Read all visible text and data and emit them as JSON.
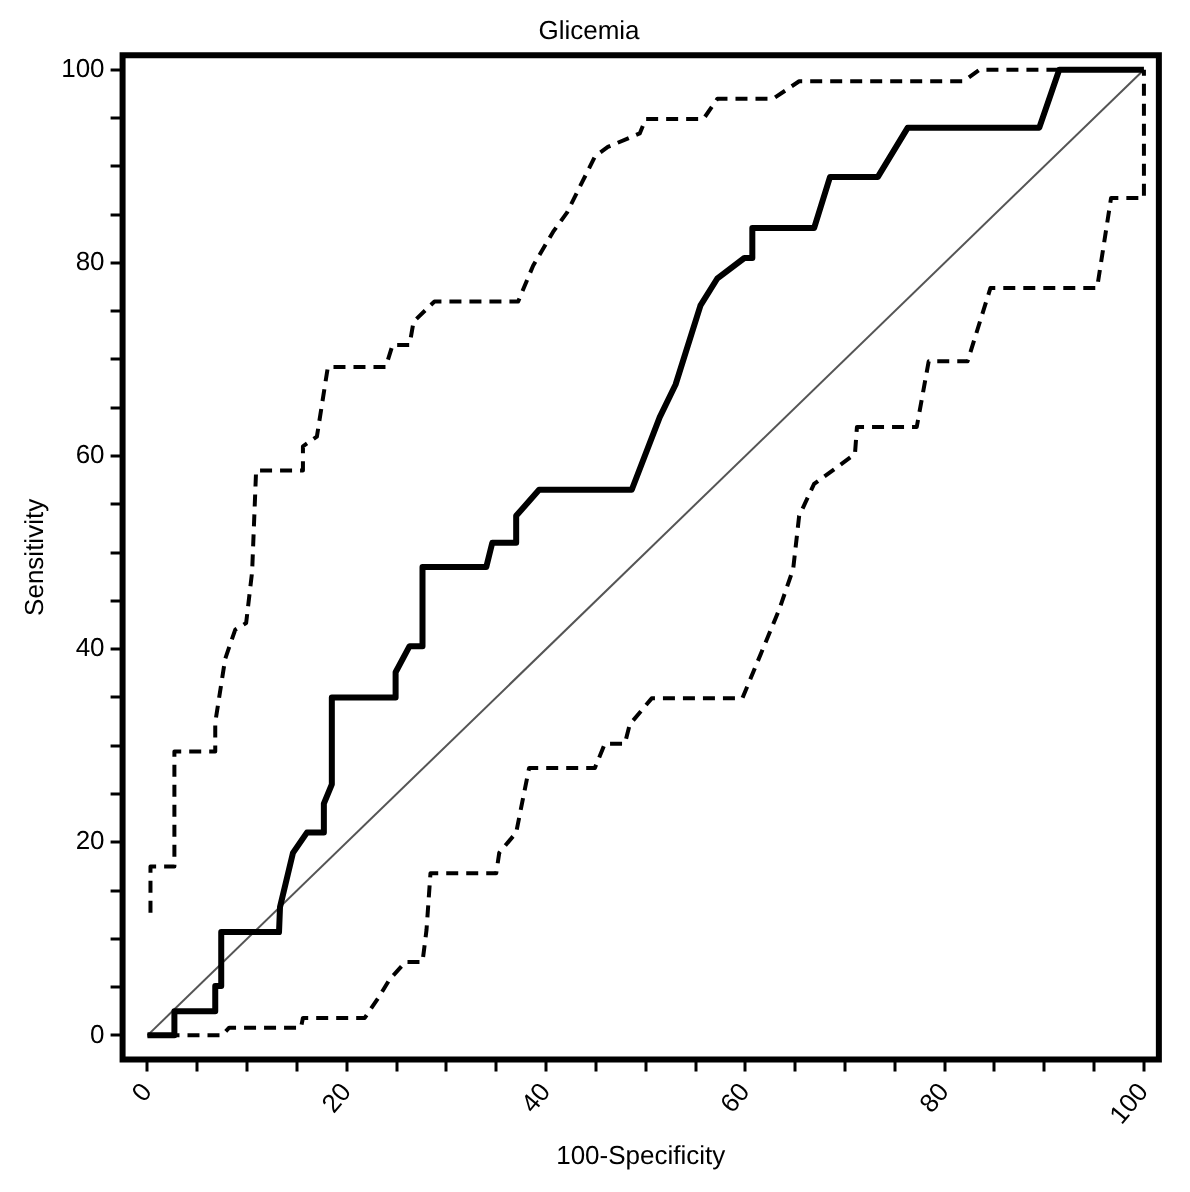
{
  "chart_data": {
    "type": "line",
    "title": "Glicemia",
    "xlabel": "100-Specificity",
    "ylabel": "Sensitivity",
    "xlim": [
      -2.5,
      101.5
    ],
    "ylim": [
      -2.5,
      101.5
    ],
    "xticks": [
      0,
      {
        "value": 5,
        "label": null
      },
      {
        "value": 10,
        "label": null
      },
      {
        "value": 15,
        "label": null
      },
      20,
      {
        "value": 25,
        "label": null
      },
      {
        "value": 30,
        "label": null
      },
      {
        "value": 35,
        "label": null
      },
      40,
      {
        "value": 45,
        "label": null
      },
      {
        "value": 50,
        "label": null
      },
      {
        "value": 55,
        "label": null
      },
      60,
      {
        "value": 65,
        "label": null
      },
      {
        "value": 70,
        "label": null
      },
      {
        "value": 75,
        "label": null
      },
      80,
      {
        "value": 85,
        "label": null
      },
      {
        "value": 90,
        "label": null
      },
      {
        "value": 95,
        "label": null
      },
      100
    ],
    "yticks": [
      0,
      {
        "value": 5,
        "label": null
      },
      {
        "value": 10,
        "label": null
      },
      {
        "value": 15,
        "label": null
      },
      20,
      {
        "value": 25,
        "label": null
      },
      {
        "value": 30,
        "label": null
      },
      {
        "value": 35,
        "label": null
      },
      40,
      {
        "value": 45,
        "label": null
      },
      {
        "value": 50,
        "label": null
      },
      {
        "value": 55,
        "label": null
      },
      60,
      {
        "value": 65,
        "label": null
      },
      {
        "value": 70,
        "label": null
      },
      {
        "value": 75,
        "label": null
      },
      80,
      {
        "value": 85,
        "label": null
      },
      {
        "value": 90,
        "label": null
      },
      {
        "value": 95,
        "label": null
      },
      100
    ],
    "grid": false,
    "legend": false,
    "marker": "none",
    "series": [
      {
        "color": "#000000",
        "line_style": "solid",
        "x": [
          0,
          2.7,
          2.7,
          6.8,
          6.8,
          7.4,
          7.4,
          13.2,
          13.3,
          14.6,
          16,
          17.7,
          17.7,
          18.5,
          18.5,
          24.9,
          24.9,
          26.3,
          27.6,
          27.6,
          34,
          34.6,
          37,
          37,
          39.3,
          48.6,
          51.4,
          53,
          55.5,
          57.2,
          59.9,
          60.7,
          60.7,
          66.9,
          68.5,
          73.3,
          76.3,
          89.5,
          90.5,
          91.5,
          100
        ],
        "values": [
          0,
          0,
          2.5,
          2.5,
          5.1,
          5.1,
          10.7,
          10.7,
          13.3,
          18.9,
          21,
          21,
          24,
          26,
          35,
          35,
          37.6,
          40.3,
          40.3,
          48.5,
          48.5,
          51,
          51,
          53.8,
          56.5,
          56.5,
          64,
          67.4,
          75.6,
          78.4,
          80.5,
          80.5,
          83.6,
          83.6,
          88.9,
          88.9,
          94,
          94,
          97,
          100,
          100
        ]
      },
      {
        "color": "#000000",
        "line_style": "dashed",
        "x": [
          0.3,
          0.3,
          2.7,
          2.7,
          6.8,
          6.8,
          7.8,
          8.8,
          9.9,
          10.5,
          10.9,
          15.6,
          15.6,
          17,
          18.1,
          23.9,
          24.6,
          26.3,
          26.7,
          28.8,
          37.2,
          38.7,
          40.7,
          42.1,
          44.9,
          46.2,
          49.4,
          50,
          55.8,
          57.2,
          62.8,
          65.4,
          81.9,
          83.5,
          100
        ],
        "values": [
          12.7,
          17.5,
          17.5,
          29.4,
          29.4,
          32.4,
          39,
          42,
          42.7,
          48,
          58.5,
          58.5,
          61,
          62,
          69.2,
          69.2,
          71.5,
          71.5,
          73.9,
          76,
          76,
          79.7,
          83.2,
          85.2,
          91,
          92,
          93.4,
          94.9,
          94.9,
          97,
          97,
          98.8,
          98.8,
          100,
          100
        ]
      },
      {
        "color": "#000000",
        "line_style": "dashed",
        "x": [
          0,
          7.5,
          8.2,
          15.4,
          15.6,
          21.8,
          23.3,
          24.3,
          25.9,
          27.6,
          28,
          28.4,
          35,
          35.3,
          37,
          38.3,
          44.9,
          45.9,
          47.9,
          48.4,
          50.6,
          59.7,
          63.4,
          64.8,
          65.4,
          66.9,
          71,
          71.2,
          77.2,
          78.4,
          82.3,
          84.6,
          95.3,
          96.7,
          100,
          100
        ],
        "values": [
          0,
          0,
          0.8,
          0.8,
          1.8,
          1.8,
          4.1,
          5.8,
          7.6,
          7.6,
          10.9,
          16.8,
          16.8,
          18.9,
          21,
          27.7,
          27.7,
          30.2,
          30.2,
          32.2,
          34.9,
          34.9,
          44.1,
          48.3,
          53.8,
          57.1,
          60.2,
          63,
          63,
          69.8,
          69.8,
          77.4,
          77.4,
          86.7,
          86.7,
          100
        ]
      },
      {
        "color": "#555555",
        "line_style": "solid",
        "x": [
          0,
          100
        ],
        "values": [
          0,
          100
        ]
      }
    ]
  }
}
